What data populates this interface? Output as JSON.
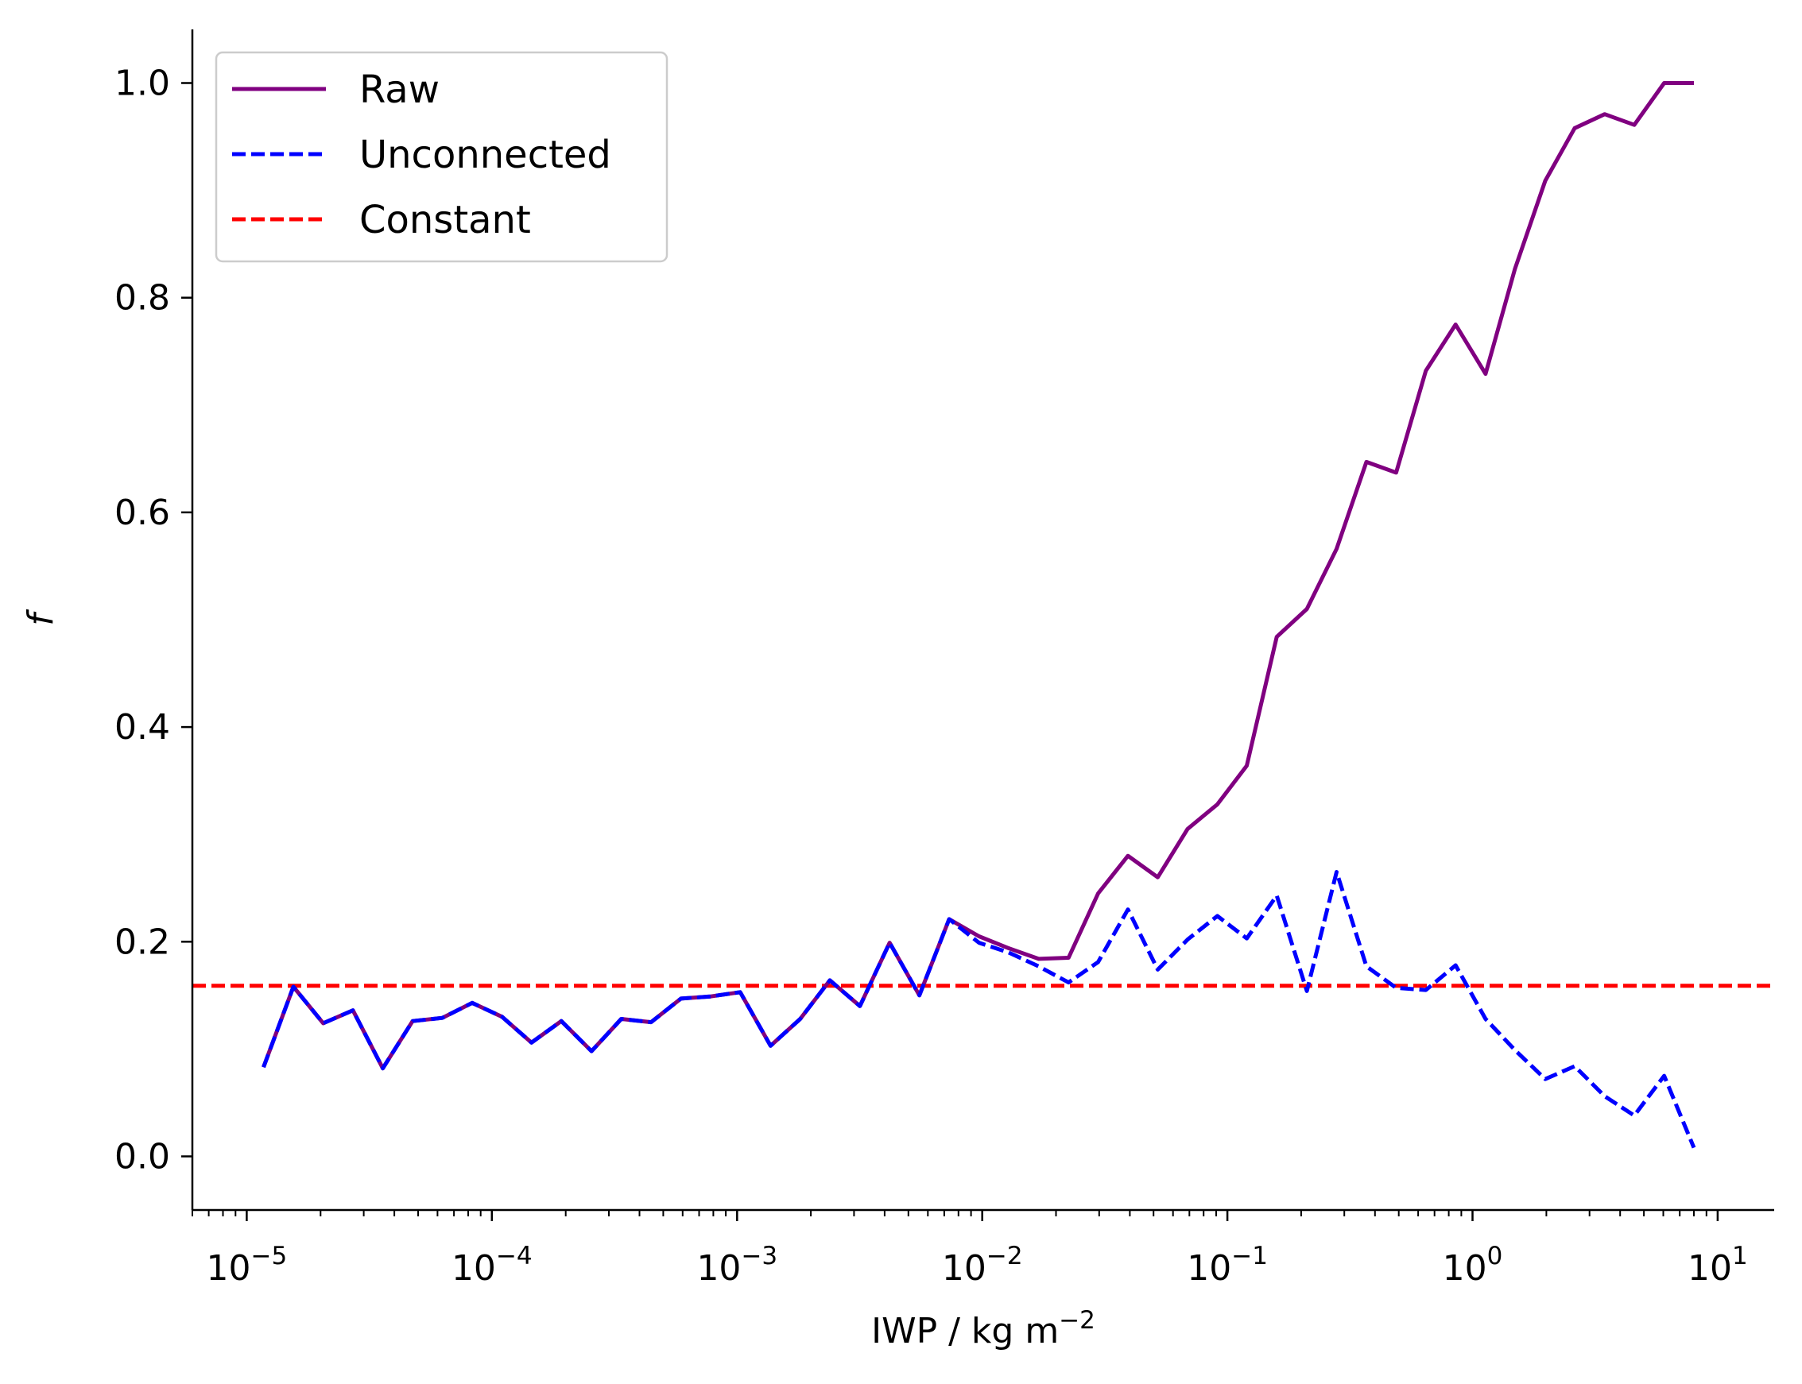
{
  "chart_data": {
    "type": "line",
    "xlabel": "IWP / kg m",
    "xlabel_sup": "−2",
    "ylabel": "f",
    "x_scale": "log",
    "xlim": [
      6e-06,
      17
    ],
    "ylim": [
      -0.05,
      1.05
    ],
    "x_ticks": [
      {
        "value": 1e-05,
        "base": "10",
        "exp": "−5"
      },
      {
        "value": 0.0001,
        "base": "10",
        "exp": "−4"
      },
      {
        "value": 0.001,
        "base": "10",
        "exp": "−3"
      },
      {
        "value": 0.01,
        "base": "10",
        "exp": "−2"
      },
      {
        "value": 0.1,
        "base": "10",
        "exp": "−1"
      },
      {
        "value": 1,
        "base": "10",
        "exp": "0"
      },
      {
        "value": 10,
        "base": "10",
        "exp": "1"
      }
    ],
    "y_ticks": [
      {
        "value": 0.0,
        "label": "0.0"
      },
      {
        "value": 0.2,
        "label": "0.2"
      },
      {
        "value": 0.4,
        "label": "0.4"
      },
      {
        "value": 0.6,
        "label": "0.6"
      },
      {
        "value": 0.8,
        "label": "0.8"
      },
      {
        "value": 1.0,
        "label": "1.0"
      }
    ],
    "grid": false,
    "legend_position": "top-left",
    "x": [
      1.17e-05,
      1.55e-05,
      2.05e-05,
      2.71e-05,
      3.59e-05,
      4.75e-05,
      6.28e-05,
      8.31e-05,
      0.00011,
      0.000145,
      0.000192,
      0.000255,
      0.000337,
      0.000446,
      0.00059,
      0.00078,
      0.00103,
      0.00137,
      0.00181,
      0.00239,
      0.00317,
      0.00419,
      0.00554,
      0.00733,
      0.0097,
      0.0128,
      0.017,
      0.0225,
      0.0297,
      0.0393,
      0.052,
      0.0688,
      0.091,
      0.12,
      0.159,
      0.211,
      0.279,
      0.369,
      0.488,
      0.645,
      0.853,
      1.13,
      1.49,
      1.98,
      2.61,
      3.46,
      4.57,
      6.05,
      8.0
    ],
    "series": [
      {
        "name": "Raw",
        "color": "#800080",
        "style": "solid",
        "values": [
          0.083,
          0.158,
          0.124,
          0.136,
          0.082,
          0.126,
          0.129,
          0.143,
          0.13,
          0.106,
          0.126,
          0.098,
          0.128,
          0.125,
          0.147,
          0.149,
          0.153,
          0.103,
          0.128,
          0.164,
          0.14,
          0.199,
          0.15,
          0.221,
          0.205,
          0.194,
          0.184,
          0.185,
          0.245,
          0.28,
          0.26,
          0.305,
          0.328,
          0.364,
          0.484,
          0.51,
          0.566,
          0.647,
          0.637,
          0.732,
          0.775,
          0.729,
          0.827,
          0.909,
          0.958,
          0.971,
          0.961,
          1.0,
          1.0
        ]
      },
      {
        "name": "Unconnected",
        "color": "#0000ff",
        "style": "dashed",
        "values": [
          0.083,
          0.158,
          0.124,
          0.136,
          0.082,
          0.126,
          0.129,
          0.143,
          0.13,
          0.106,
          0.126,
          0.098,
          0.128,
          0.125,
          0.147,
          0.149,
          0.153,
          0.103,
          0.128,
          0.164,
          0.14,
          0.199,
          0.15,
          0.221,
          0.199,
          0.19,
          0.177,
          0.162,
          0.181,
          0.23,
          0.174,
          0.202,
          0.224,
          0.203,
          0.243,
          0.154,
          0.265,
          0.177,
          0.157,
          0.155,
          0.178,
          0.128,
          0.099,
          0.072,
          0.084,
          0.056,
          0.038,
          0.075,
          0.008
        ]
      },
      {
        "name": "Constant",
        "color": "#ff0000",
        "style": "dashed",
        "constant": 0.159
      }
    ]
  }
}
